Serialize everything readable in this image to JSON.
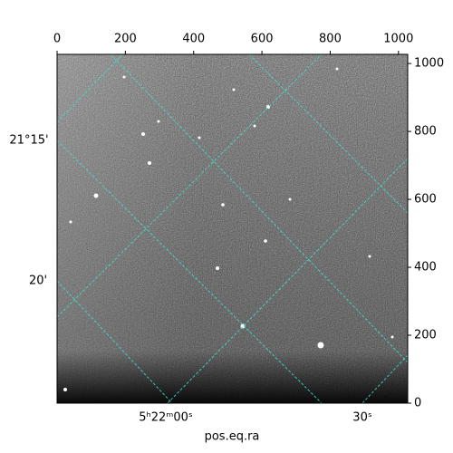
{
  "chart_data": {
    "type": "image",
    "xlabel": "pos.eq.ra",
    "xlim": [
      0,
      1027
    ],
    "ylim": [
      0,
      1027
    ],
    "xticks": [
      0,
      200,
      400,
      600,
      800,
      1000
    ],
    "yticks": [
      0,
      200,
      400,
      600,
      800,
      1000
    ],
    "dec_ticks": [
      "21°15'",
      "20'"
    ],
    "ra_ticks": [
      "5ʰ22ᵐ00ˢ",
      "30ˢ"
    ],
    "colormap": "gray"
  }
}
